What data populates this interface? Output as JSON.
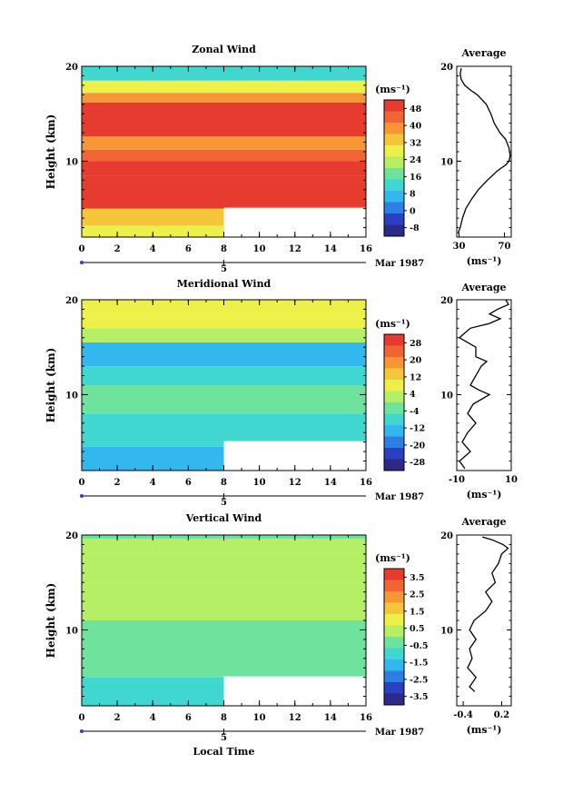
{
  "chart_data": [
    {
      "type": "heatmap",
      "title": "Zonal Wind",
      "ylabel": "Height (km)",
      "xlabel": "",
      "xlim": [
        0,
        16
      ],
      "ylim": [
        2,
        20
      ],
      "x_ticks": [
        "0",
        "2",
        "4",
        "6",
        "8",
        "10",
        "12",
        "14",
        "16"
      ],
      "y_ticks": [
        "10",
        "20"
      ],
      "date_marker": "5",
      "date_label": "Mar 1987",
      "colorbar": {
        "unit": "(ms⁻¹)",
        "levels": [
          "48",
          "40",
          "32",
          "24",
          "16",
          "8",
          "0",
          "-8"
        ],
        "range": [
          -12,
          52
        ]
      },
      "layers": [
        {
          "y": [
            2,
            3.2
          ],
          "value": 26
        },
        {
          "y": [
            3.2,
            5
          ],
          "value": 33
        },
        {
          "y": [
            5,
            8.5
          ],
          "value": 50
        },
        {
          "y": [
            8.5,
            10
          ],
          "value": 52
        },
        {
          "y": [
            10,
            11.2
          ],
          "value": 45
        },
        {
          "y": [
            11.2,
            12.6
          ],
          "value": 40
        },
        {
          "y": [
            12.6,
            16.2
          ],
          "value": 52
        },
        {
          "y": [
            16.2,
            17.2
          ],
          "value": 37
        },
        {
          "y": [
            17.2,
            18.5
          ],
          "value": 26
        },
        {
          "y": [
            18.5,
            20
          ],
          "value": 12
        }
      ],
      "missing_region": {
        "x": [
          8,
          16
        ],
        "y": [
          2,
          5.1
        ]
      },
      "average": {
        "title": "Average",
        "unit": "(ms⁻¹)",
        "xlim": [
          28,
          76
        ],
        "x_ticks": [
          "30",
          "70"
        ],
        "y_ticks": [
          "10",
          "20"
        ],
        "profile": [
          [
            2.4,
            29
          ],
          [
            3,
            31
          ],
          [
            4,
            33
          ],
          [
            5,
            36
          ],
          [
            6,
            41
          ],
          [
            7,
            47
          ],
          [
            8,
            55
          ],
          [
            9,
            64
          ],
          [
            9.6,
            71
          ],
          [
            10,
            74
          ],
          [
            10.6,
            75
          ],
          [
            11.4,
            74
          ],
          [
            12.3,
            71
          ],
          [
            13,
            66
          ],
          [
            14,
            61
          ],
          [
            15,
            58
          ],
          [
            16,
            54
          ],
          [
            17,
            46
          ],
          [
            17.5,
            40
          ],
          [
            18,
            35
          ],
          [
            18.6,
            32
          ],
          [
            19.2,
            31
          ],
          [
            19.8,
            32
          ]
        ]
      }
    },
    {
      "type": "heatmap",
      "title": "Meridional Wind",
      "ylabel": "Height (km)",
      "xlabel": "",
      "xlim": [
        0,
        16
      ],
      "ylim": [
        2,
        20
      ],
      "x_ticks": [
        "0",
        "2",
        "4",
        "6",
        "8",
        "10",
        "12",
        "14",
        "16"
      ],
      "y_ticks": [
        "10",
        "20"
      ],
      "date_marker": "5",
      "date_label": "Mar 1987",
      "colorbar": {
        "unit": "(ms⁻¹)",
        "levels": [
          "28",
          "20",
          "12",
          "4",
          "-4",
          "-12",
          "-20",
          "-28"
        ],
        "range": [
          -32,
          32
        ]
      },
      "layers": [
        {
          "y": [
            2,
            4.5
          ],
          "value": -14
        },
        {
          "y": [
            4.5,
            8
          ],
          "value": -8
        },
        {
          "y": [
            8,
            11
          ],
          "value": -4
        },
        {
          "y": [
            11,
            13
          ],
          "value": -8
        },
        {
          "y": [
            13,
            15.5
          ],
          "value": -13
        },
        {
          "y": [
            15.5,
            17
          ],
          "value": 2
        },
        {
          "y": [
            17,
            18.3
          ],
          "value": 10
        },
        {
          "y": [
            18.3,
            20
          ],
          "value": 6
        }
      ],
      "missing_region": {
        "x": [
          8,
          16
        ],
        "y": [
          2,
          5.1
        ]
      },
      "average": {
        "title": "Average",
        "unit": "(ms⁻¹)",
        "xlim": [
          -10,
          10
        ],
        "x_ticks": [
          "-10",
          "10"
        ],
        "y_ticks": [
          "10",
          "20"
        ],
        "profile": [
          [
            2.2,
            -7
          ],
          [
            3,
            -9
          ],
          [
            4,
            -5
          ],
          [
            5,
            -8
          ],
          [
            6,
            -6
          ],
          [
            7,
            -3
          ],
          [
            8,
            -6
          ],
          [
            9,
            -4
          ],
          [
            10,
            2
          ],
          [
            10.5,
            -2
          ],
          [
            11,
            -5
          ],
          [
            12,
            -3
          ],
          [
            13,
            -1
          ],
          [
            13.5,
            1
          ],
          [
            14,
            -3
          ],
          [
            15,
            -3
          ],
          [
            16,
            -9
          ],
          [
            17,
            -5
          ],
          [
            17.5,
            2
          ],
          [
            18,
            6
          ],
          [
            18.5,
            2
          ],
          [
            19,
            5
          ],
          [
            19.5,
            9
          ],
          [
            20,
            8
          ]
        ]
      }
    },
    {
      "type": "heatmap",
      "title": "Vertical Wind",
      "ylabel": "Height (km)",
      "xlabel": "Local Time",
      "xlim": [
        0,
        16
      ],
      "ylim": [
        2,
        20
      ],
      "x_ticks": [
        "0",
        "2",
        "4",
        "6",
        "8",
        "10",
        "12",
        "14",
        "16"
      ],
      "y_ticks": [
        "10",
        "20"
      ],
      "date_marker": "5",
      "date_label": "Mar 1987",
      "colorbar": {
        "unit": "(ms⁻¹)",
        "levels": [
          "3.5",
          "2.5",
          "1.5",
          "0.5",
          "-0.5",
          "-1.5",
          "-2.5",
          "-3.5"
        ],
        "range": [
          -4,
          4
        ]
      },
      "layers": [
        {
          "y": [
            2,
            5
          ],
          "value": -0.8
        },
        {
          "y": [
            5,
            11
          ],
          "value": -0.4
        },
        {
          "y": [
            11,
            15
          ],
          "value": 0.1
        },
        {
          "y": [
            15,
            18
          ],
          "value": 0.4
        },
        {
          "y": [
            18,
            19.6
          ],
          "value": 0.6
        },
        {
          "y": [
            19.6,
            20
          ],
          "value": -0.2
        }
      ],
      "missing_region": {
        "x": [
          8,
          16
        ],
        "y": [
          2,
          5.1
        ]
      },
      "average": {
        "title": "Average",
        "unit": "(ms⁻¹)",
        "xlim": [
          -0.5,
          0.35
        ],
        "x_ticks": [
          "-0.4",
          "0.2"
        ],
        "y_ticks": [
          "10",
          "20"
        ],
        "profile": [
          [
            3.5,
            -0.22
          ],
          [
            4,
            -0.3
          ],
          [
            5,
            -0.2
          ],
          [
            6,
            -0.33
          ],
          [
            7,
            -0.26
          ],
          [
            8,
            -0.3
          ],
          [
            9,
            -0.2
          ],
          [
            10,
            -0.3
          ],
          [
            11,
            -0.23
          ],
          [
            12,
            -0.05
          ],
          [
            13,
            0.05
          ],
          [
            14,
            -0.05
          ],
          [
            15,
            0.1
          ],
          [
            16,
            0.05
          ],
          [
            17,
            0.15
          ],
          [
            18,
            0.2
          ],
          [
            18.6,
            0.3
          ],
          [
            19,
            0.22
          ],
          [
            19.5,
            0.05
          ],
          [
            19.8,
            -0.1
          ]
        ]
      }
    }
  ]
}
